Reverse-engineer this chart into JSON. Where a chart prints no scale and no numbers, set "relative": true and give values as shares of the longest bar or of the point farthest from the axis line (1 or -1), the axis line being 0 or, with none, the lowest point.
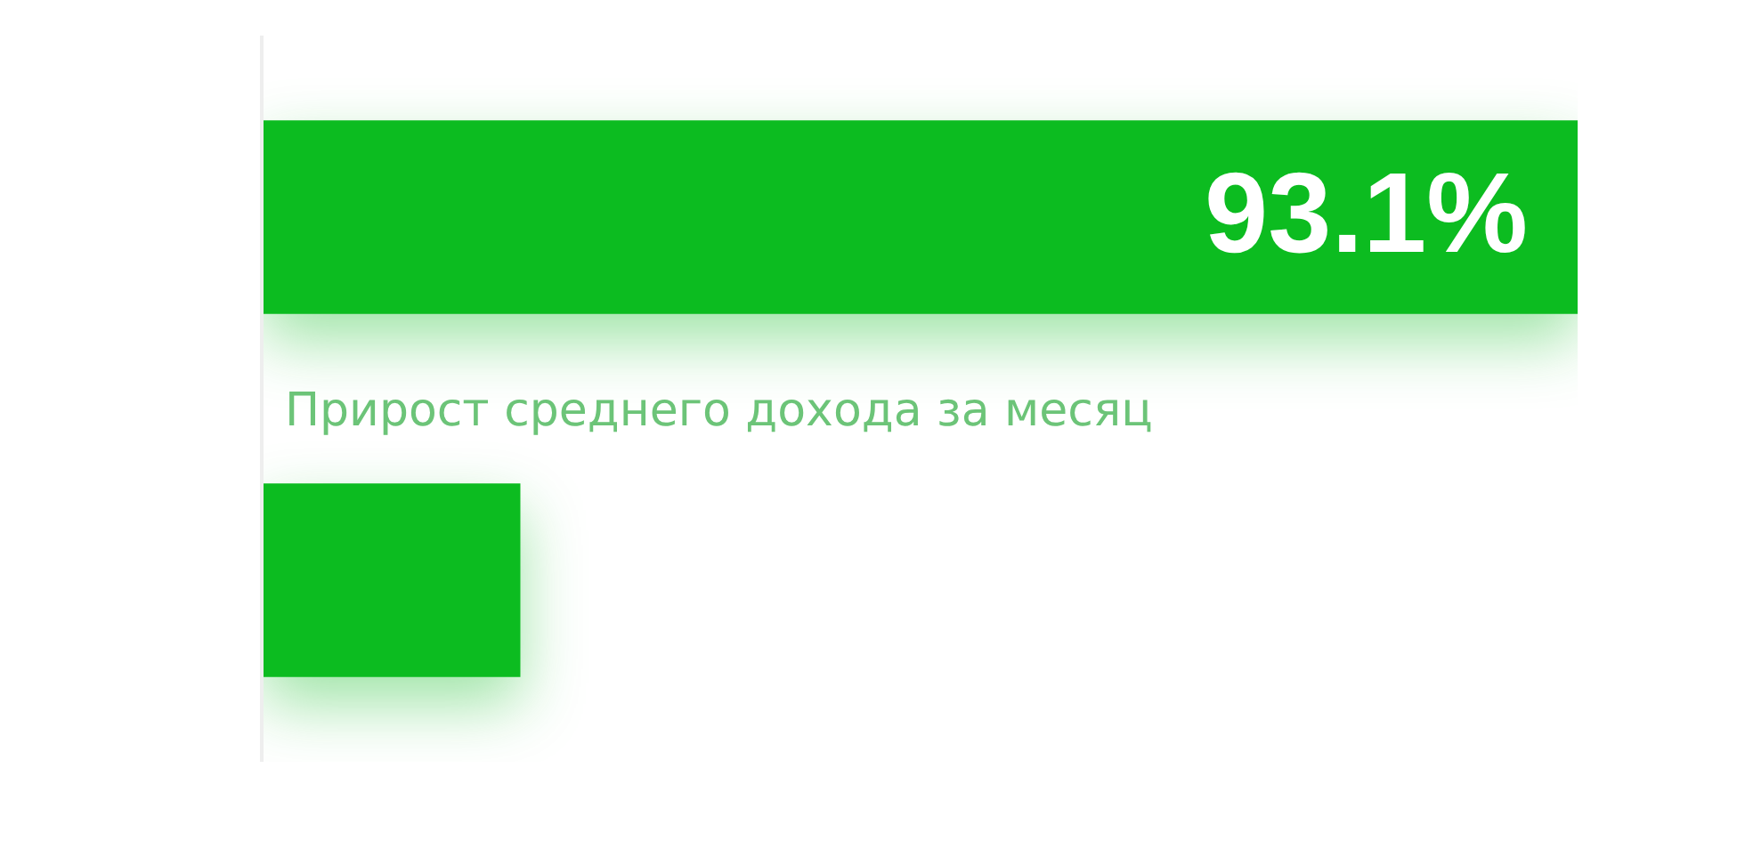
{
  "chart_data": {
    "type": "bar",
    "orientation": "horizontal",
    "relative": true,
    "categories": [
      null,
      null
    ],
    "annotations": [
      "Прирост среднего дохода за месяц"
    ],
    "series": [
      {
        "color": "#0cbc20",
        "values": [
          1,
          0.195
        ]
      }
    ],
    "value_labels": [
      "93.1%",
      null
    ]
  }
}
